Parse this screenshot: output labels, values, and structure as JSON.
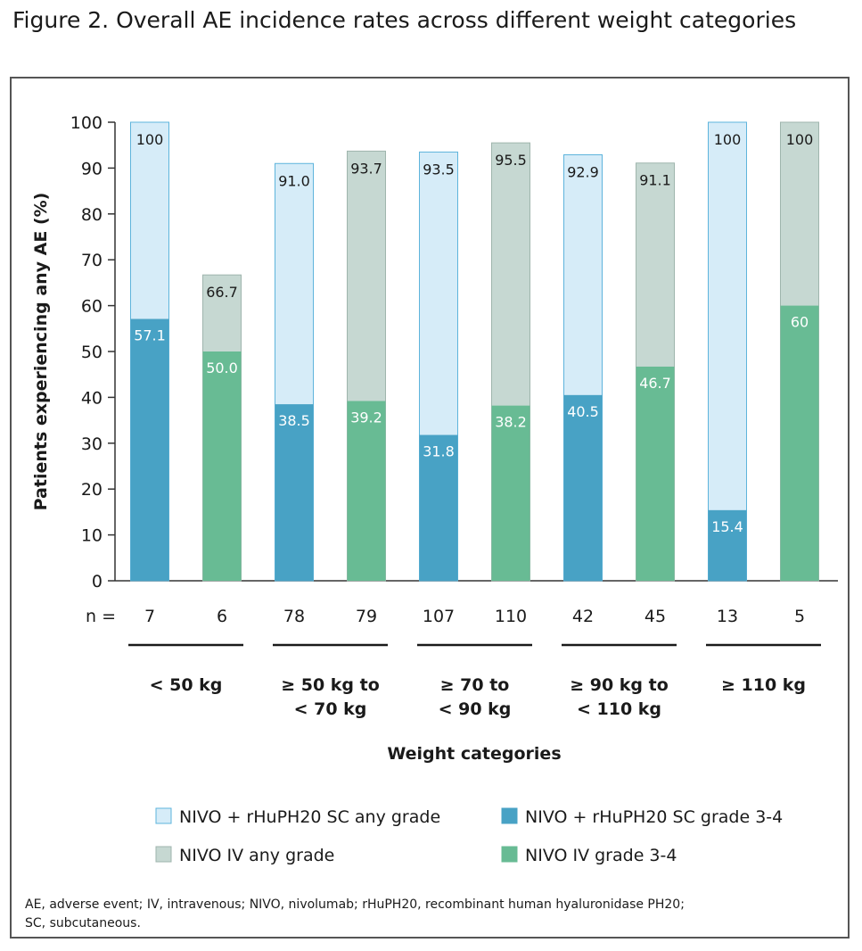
{
  "figure_title": "Figure 2. Overall AE incidence rates across different weight categories",
  "footnote_lines": [
    "AE, adverse event; IV, intravenous; NIVO, nivolumab; rHuPH20, recombinant human hyaluronidase PH20;",
    "SC, subcutaneous."
  ],
  "colors": {
    "sc_any": "#d6ecf8",
    "sc_any_border": "#5eb4dc",
    "sc_g34": "#48a2c5",
    "iv_any": "#c6d8d2",
    "iv_any_border": "#9fb5ad",
    "iv_g34": "#68bb94",
    "axis": "#333333"
  },
  "chart_data": {
    "type": "bar",
    "title": "",
    "xlabel": "Weight categories",
    "ylabel": "Patients experiencing any AE (%)",
    "ylim": [
      0,
      100
    ],
    "yticks": [
      0,
      10,
      20,
      30,
      40,
      50,
      60,
      70,
      80,
      90,
      100
    ],
    "n_label": "n =",
    "categories": [
      "< 50 kg",
      "≥ 50 kg to < 70 kg",
      "≥ 70 to < 90 kg",
      "≥ 90 kg to < 110 kg",
      "≥ 110 kg"
    ],
    "category_label_lines": [
      [
        "< 50 kg"
      ],
      [
        "≥ 50 kg to",
        "< 70 kg"
      ],
      [
        "≥ 70 to",
        "< 90 kg"
      ],
      [
        "≥ 90 kg to",
        "< 110 kg"
      ],
      [
        "≥ 110 kg"
      ]
    ],
    "groups": [
      {
        "label": "NIVO + rHuPH20 SC",
        "any_grade": [
          100,
          91.0,
          93.5,
          92.9,
          100
        ],
        "grade_3_4": [
          57.1,
          38.5,
          31.8,
          40.5,
          15.4
        ],
        "n": [
          7,
          78,
          107,
          42,
          13
        ]
      },
      {
        "label": "NIVO IV",
        "any_grade": [
          66.7,
          93.7,
          95.5,
          91.1,
          100
        ],
        "grade_3_4": [
          50.0,
          39.2,
          38.2,
          46.7,
          60
        ],
        "n": [
          6,
          79,
          110,
          45,
          5
        ]
      }
    ],
    "value_labels": {
      "sc_any": [
        "100",
        "91.0",
        "93.5",
        "92.9",
        "100"
      ],
      "sc_g34": [
        "57.1",
        "38.5",
        "31.8",
        "40.5",
        "15.4"
      ],
      "iv_any": [
        "66.7",
        "93.7",
        "95.5",
        "91.1",
        "100"
      ],
      "iv_g34": [
        "50.0",
        "39.2",
        "38.2",
        "46.7",
        "60"
      ]
    },
    "legend": [
      {
        "name": "NIVO + rHuPH20 SC any grade",
        "key": "sc_any"
      },
      {
        "name": "NIVO + rHuPH20 SC grade 3-4",
        "key": "sc_g34"
      },
      {
        "name": "NIVO IV any grade",
        "key": "iv_any"
      },
      {
        "name": "NIVO IV grade 3-4",
        "key": "iv_g34"
      }
    ],
    "legend_position": "bottom",
    "grid": false
  }
}
